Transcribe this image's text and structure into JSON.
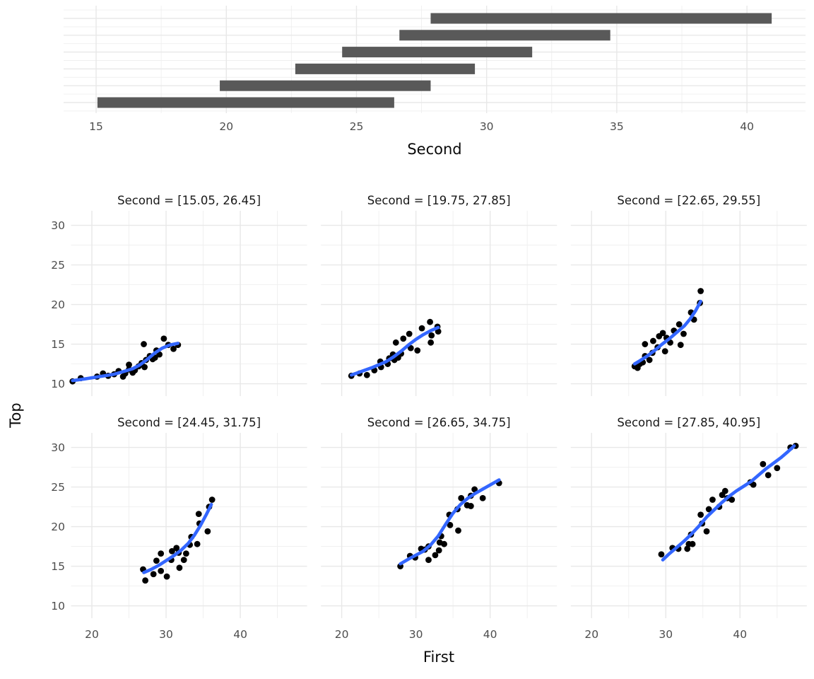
{
  "colors": {
    "background": "#FFFFFF",
    "grid": "#E8E8E8",
    "grid_minor": "#EFEFEF",
    "bar": "#595959",
    "point": "#000000",
    "smooth": "#3366FF",
    "tick_text": "#4D4D4D",
    "title_text": "#0A0A0A",
    "strip_text": "#191919"
  },
  "chart_data": [
    {
      "type": "bar",
      "subtype": "horizontal-interval-shingles",
      "xlabel": "Second",
      "x_ticks": [
        15,
        20,
        25,
        30,
        35,
        40
      ],
      "x_minor": [
        17.5,
        22.5,
        27.5,
        32.5,
        37.5
      ],
      "x_domain": [
        13.75,
        42.25
      ],
      "grid": "on",
      "bars_bottom_to_top": [
        {
          "start": 15.05,
          "end": 26.45
        },
        {
          "start": 19.75,
          "end": 27.85
        },
        {
          "start": 22.65,
          "end": 29.55
        },
        {
          "start": 24.45,
          "end": 31.75
        },
        {
          "start": 26.65,
          "end": 34.75
        },
        {
          "start": 27.85,
          "end": 40.95
        }
      ]
    },
    {
      "type": "scatter",
      "subtype": "facet-grid-with-loess",
      "xlabel": "First",
      "ylabel": "Top",
      "x_ticks": [
        20,
        30,
        40
      ],
      "x_minor": [
        25,
        35,
        45
      ],
      "y_ticks": [
        30,
        25,
        20,
        15,
        10
      ],
      "y_minor": [
        12.5,
        17.5,
        22.5,
        27.5
      ],
      "x_domain": [
        17.2,
        49.0
      ],
      "y_domain": [
        8.44,
        31.84
      ],
      "grid": "on",
      "legend": "none",
      "facets": [
        {
          "title": "Second = [15.05, 26.45]",
          "points": [
            [
              17.4,
              10.3
            ],
            [
              18.5,
              10.7
            ],
            [
              20.7,
              10.9
            ],
            [
              21.5,
              11.3
            ],
            [
              22.2,
              11.0
            ],
            [
              23.0,
              11.2
            ],
            [
              23.6,
              11.6
            ],
            [
              24.2,
              10.9
            ],
            [
              24.5,
              11.3
            ],
            [
              25.0,
              11.8
            ],
            [
              25.0,
              12.4
            ],
            [
              25.5,
              11.4
            ],
            [
              25.8,
              11.7
            ],
            [
              26.3,
              12.2
            ],
            [
              26.7,
              12.6
            ],
            [
              27.0,
              15.0
            ],
            [
              27.1,
              12.1
            ],
            [
              27.3,
              13.0
            ],
            [
              27.8,
              13.5
            ],
            [
              28.2,
              13.1
            ],
            [
              28.5,
              13.3
            ],
            [
              28.7,
              14.2
            ],
            [
              29.1,
              13.7
            ],
            [
              29.7,
              15.7
            ],
            [
              30.3,
              14.9
            ],
            [
              31.0,
              14.4
            ],
            [
              31.6,
              14.9
            ]
          ],
          "smooth": [
            [
              17.4,
              10.4
            ],
            [
              19.0,
              10.6
            ],
            [
              21.0,
              10.9
            ],
            [
              23.0,
              11.2
            ],
            [
              24.5,
              11.6
            ],
            [
              25.5,
              11.9
            ],
            [
              26.5,
              12.4
            ],
            [
              27.5,
              13.1
            ],
            [
              28.5,
              13.9
            ],
            [
              29.5,
              14.5
            ],
            [
              30.5,
              14.9
            ],
            [
              31.6,
              15.1
            ]
          ]
        },
        {
          "title": "Second = [19.75, 27.85]",
          "points": [
            [
              21.3,
              11.0
            ],
            [
              22.4,
              11.3
            ],
            [
              23.4,
              11.1
            ],
            [
              24.4,
              11.7
            ],
            [
              25.3,
              12.1
            ],
            [
              25.2,
              12.8
            ],
            [
              26.2,
              12.5
            ],
            [
              26.4,
              13.2
            ],
            [
              26.9,
              13.7
            ],
            [
              27.1,
              13.0
            ],
            [
              27.6,
              13.3
            ],
            [
              28.0,
              13.8
            ],
            [
              27.3,
              15.2
            ],
            [
              28.3,
              15.7
            ],
            [
              29.1,
              16.3
            ],
            [
              29.3,
              14.5
            ],
            [
              30.2,
              14.2
            ],
            [
              30.8,
              17.0
            ],
            [
              31.9,
              17.8
            ],
            [
              32.1,
              16.1
            ],
            [
              32.0,
              15.2
            ],
            [
              32.9,
              17.2
            ],
            [
              33.0,
              16.6
            ]
          ],
          "smooth": [
            [
              21.3,
              11.1
            ],
            [
              22.5,
              11.5
            ],
            [
              24.0,
              12.0
            ],
            [
              25.0,
              12.4
            ],
            [
              26.0,
              12.8
            ],
            [
              27.0,
              13.4
            ],
            [
              28.0,
              14.1
            ],
            [
              29.0,
              14.9
            ],
            [
              30.0,
              15.6
            ],
            [
              31.0,
              16.2
            ],
            [
              32.0,
              16.7
            ],
            [
              33.0,
              17.1
            ]
          ]
        },
        {
          "title": "Second = [22.65, 29.55]",
          "points": [
            [
              25.8,
              12.2
            ],
            [
              26.2,
              12.0
            ],
            [
              26.5,
              12.5
            ],
            [
              26.9,
              12.7
            ],
            [
              27.2,
              13.5
            ],
            [
              27.8,
              13.0
            ],
            [
              27.2,
              15.0
            ],
            [
              28.2,
              13.9
            ],
            [
              28.3,
              15.4
            ],
            [
              28.9,
              14.6
            ],
            [
              29.1,
              16.0
            ],
            [
              29.6,
              16.4
            ],
            [
              29.9,
              14.1
            ],
            [
              30.1,
              15.8
            ],
            [
              30.6,
              15.2
            ],
            [
              31.1,
              16.7
            ],
            [
              31.8,
              17.5
            ],
            [
              32.0,
              14.9
            ],
            [
              32.4,
              16.3
            ],
            [
              33.4,
              19.0
            ],
            [
              33.8,
              18.1
            ],
            [
              34.6,
              20.2
            ],
            [
              34.7,
              21.7
            ]
          ],
          "smooth": [
            [
              25.8,
              12.5
            ],
            [
              26.5,
              12.9
            ],
            [
              27.5,
              13.5
            ],
            [
              28.5,
              14.2
            ],
            [
              29.5,
              15.0
            ],
            [
              30.5,
              15.7
            ],
            [
              31.5,
              16.5
            ],
            [
              32.5,
              17.3
            ],
            [
              33.3,
              18.2
            ],
            [
              34.0,
              19.2
            ],
            [
              34.7,
              20.4
            ]
          ]
        },
        {
          "title": "Second = [24.45, 31.75]",
          "points": [
            [
              26.9,
              14.6
            ],
            [
              27.2,
              13.2
            ],
            [
              28.3,
              14.0
            ],
            [
              28.7,
              15.7
            ],
            [
              29.3,
              16.6
            ],
            [
              29.3,
              14.4
            ],
            [
              30.1,
              13.7
            ],
            [
              30.7,
              15.8
            ],
            [
              30.8,
              16.9
            ],
            [
              31.4,
              17.3
            ],
            [
              31.7,
              16.7
            ],
            [
              31.8,
              14.8
            ],
            [
              32.4,
              15.8
            ],
            [
              32.7,
              16.6
            ],
            [
              33.2,
              17.7
            ],
            [
              33.4,
              18.7
            ],
            [
              34.2,
              17.8
            ],
            [
              34.4,
              21.6
            ],
            [
              34.5,
              20.4
            ],
            [
              35.6,
              19.4
            ],
            [
              35.8,
              22.5
            ],
            [
              36.2,
              23.4
            ]
          ],
          "smooth": [
            [
              27.0,
              14.2
            ],
            [
              28.0,
              14.6
            ],
            [
              29.0,
              15.1
            ],
            [
              30.0,
              15.7
            ],
            [
              31.0,
              16.3
            ],
            [
              32.0,
              17.0
            ],
            [
              33.0,
              17.9
            ],
            [
              33.8,
              18.9
            ],
            [
              34.6,
              20.1
            ],
            [
              35.4,
              21.5
            ],
            [
              36.1,
              22.8
            ]
          ]
        },
        {
          "title": "Second = [26.65, 34.75]",
          "points": [
            [
              27.9,
              15.0
            ],
            [
              29.2,
              16.3
            ],
            [
              29.9,
              16.1
            ],
            [
              30.7,
              17.2
            ],
            [
              31.2,
              17.1
            ],
            [
              31.7,
              17.5
            ],
            [
              31.7,
              15.8
            ],
            [
              32.6,
              16.4
            ],
            [
              33.1,
              17.0
            ],
            [
              33.2,
              18.0
            ],
            [
              33.4,
              18.8
            ],
            [
              33.8,
              17.8
            ],
            [
              34.5,
              21.5
            ],
            [
              34.6,
              20.2
            ],
            [
              35.6,
              22.2
            ],
            [
              35.7,
              19.5
            ],
            [
              36.1,
              23.6
            ],
            [
              36.9,
              22.7
            ],
            [
              37.4,
              23.9
            ],
            [
              37.4,
              22.6
            ],
            [
              37.9,
              24.7
            ],
            [
              39.0,
              23.6
            ],
            [
              41.2,
              25.5
            ]
          ],
          "smooth": [
            [
              27.9,
              15.3
            ],
            [
              29.0,
              15.9
            ],
            [
              30.0,
              16.4
            ],
            [
              31.0,
              16.9
            ],
            [
              32.0,
              17.7
            ],
            [
              33.0,
              18.8
            ],
            [
              34.0,
              20.3
            ],
            [
              35.0,
              21.7
            ],
            [
              36.0,
              22.8
            ],
            [
              37.0,
              23.6
            ],
            [
              38.0,
              24.2
            ],
            [
              39.5,
              25.0
            ],
            [
              41.2,
              25.9
            ]
          ]
        },
        {
          "title": "Second = [27.85, 40.95]",
          "points": [
            [
              29.4,
              16.5
            ],
            [
              30.9,
              17.3
            ],
            [
              31.7,
              17.2
            ],
            [
              32.9,
              17.2
            ],
            [
              33.1,
              17.8
            ],
            [
              33.6,
              17.8
            ],
            [
              33.4,
              19.0
            ],
            [
              34.7,
              21.5
            ],
            [
              34.9,
              20.4
            ],
            [
              35.5,
              19.4
            ],
            [
              35.8,
              22.2
            ],
            [
              36.3,
              23.4
            ],
            [
              37.2,
              22.5
            ],
            [
              37.6,
              24.0
            ],
            [
              38.0,
              24.5
            ],
            [
              38.3,
              23.6
            ],
            [
              38.9,
              23.4
            ],
            [
              41.4,
              25.6
            ],
            [
              41.8,
              25.3
            ],
            [
              43.1,
              27.9
            ],
            [
              43.8,
              26.5
            ],
            [
              45.0,
              27.4
            ],
            [
              46.8,
              30.0
            ],
            [
              47.5,
              30.2
            ]
          ],
          "smooth": [
            [
              29.6,
              15.8
            ],
            [
              30.5,
              16.6
            ],
            [
              31.5,
              17.4
            ],
            [
              32.5,
              18.2
            ],
            [
              33.5,
              19.1
            ],
            [
              34.5,
              20.1
            ],
            [
              35.5,
              21.2
            ],
            [
              36.5,
              22.1
            ],
            [
              37.5,
              23.0
            ],
            [
              38.5,
              23.8
            ],
            [
              39.5,
              24.5
            ],
            [
              40.5,
              25.1
            ],
            [
              41.5,
              25.7
            ],
            [
              42.5,
              26.5
            ],
            [
              43.5,
              27.3
            ],
            [
              44.5,
              28.0
            ],
            [
              45.5,
              28.7
            ],
            [
              46.5,
              29.5
            ],
            [
              47.3,
              30.2
            ]
          ]
        }
      ]
    }
  ]
}
